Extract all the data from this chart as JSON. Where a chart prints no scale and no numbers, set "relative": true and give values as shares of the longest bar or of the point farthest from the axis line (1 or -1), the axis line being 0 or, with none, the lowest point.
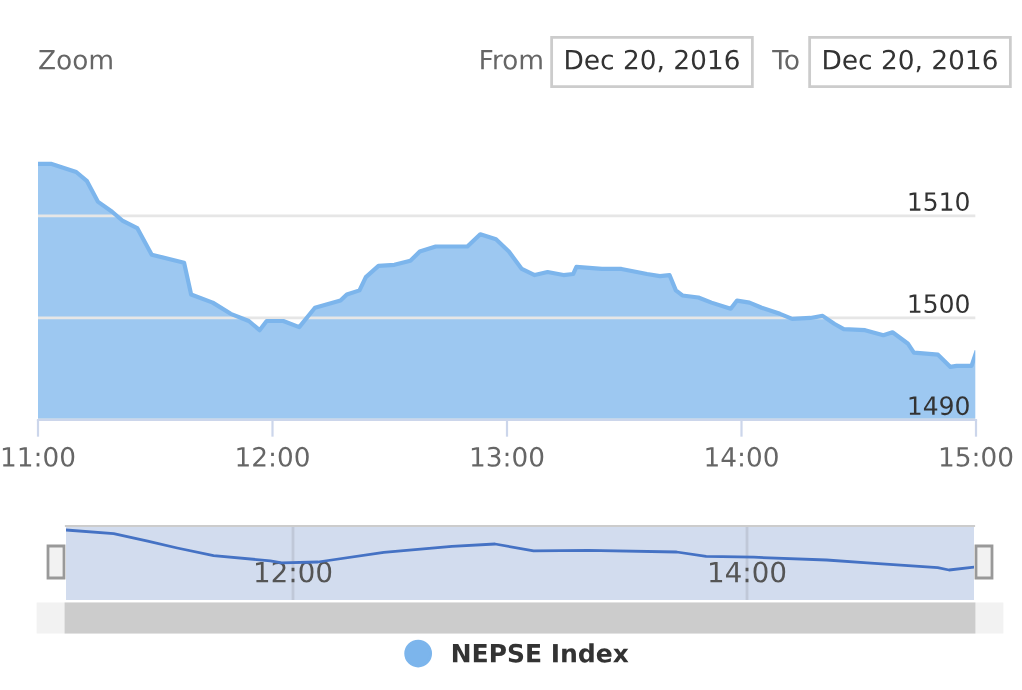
{
  "chart_data": [
    {
      "type": "area",
      "annotations": [
        "Zoom",
        "From",
        "Dec 20, 2016",
        "To",
        "Dec 20, 2016"
      ],
      "x": [
        11.0,
        11.055,
        11.163,
        11.209,
        11.255,
        11.316,
        11.362,
        11.423,
        11.485,
        11.623,
        11.653,
        11.745,
        11.822,
        11.899,
        11.945,
        11.975,
        12.046,
        12.114,
        12.181,
        12.29,
        12.317,
        12.371,
        12.398,
        12.452,
        12.52,
        12.588,
        12.628,
        12.696,
        12.831,
        12.886,
        12.953,
        13.008,
        13.063,
        13.118,
        13.173,
        13.241,
        13.282,
        13.296,
        13.405,
        13.488,
        13.597,
        13.652,
        13.693,
        13.72,
        13.748,
        13.816,
        13.872,
        13.954,
        13.981,
        14.034,
        14.086,
        14.164,
        14.216,
        14.294,
        14.346,
        14.397,
        14.436,
        14.527,
        14.605,
        14.644,
        14.709,
        14.735,
        14.838,
        14.891,
        14.917,
        14.981,
        15.0
      ],
      "series": [
        {
          "name": "NEPSE Index",
          "color": "#7cb5ec",
          "values": [
            1515.1,
            1515.1,
            1514.3,
            1513.4,
            1511.4,
            1510.4,
            1509.5,
            1508.8,
            1506.2,
            1505.4,
            1502.3,
            1501.5,
            1500.4,
            1499.7,
            1498.8,
            1499.7,
            1499.7,
            1499.1,
            1501.0,
            1501.7,
            1502.3,
            1502.7,
            1504.0,
            1505.1,
            1505.2,
            1505.6,
            1506.5,
            1507.0,
            1507.0,
            1508.2,
            1507.7,
            1506.5,
            1504.8,
            1504.2,
            1504.5,
            1504.2,
            1504.3,
            1505.0,
            1504.8,
            1504.8,
            1504.3,
            1504.1,
            1504.2,
            1502.7,
            1502.2,
            1502.0,
            1501.5,
            1500.9,
            1501.7,
            1501.5,
            1501.0,
            1500.4,
            1499.9,
            1500.0,
            1500.2,
            1499.4,
            1498.9,
            1498.8,
            1498.3,
            1498.6,
            1497.5,
            1496.6,
            1496.4,
            1495.2,
            1495.3,
            1495.3,
            1496.6
          ]
        }
      ],
      "xlim": [
        11,
        15
      ],
      "ylim": [
        1490,
        1519
      ],
      "xticks": [
        {
          "value": 11,
          "label": "11:00"
        },
        {
          "value": 12,
          "label": "12:00"
        },
        {
          "value": 13,
          "label": "13:00"
        },
        {
          "value": 14,
          "label": "14:00"
        },
        {
          "value": 15,
          "label": "15:00"
        }
      ],
      "yticks": [
        1490,
        1500,
        1510
      ],
      "grid": "y",
      "legend": "bottom",
      "marker": "none"
    },
    {
      "type": "line",
      "relative": true,
      "x": [
        11.0,
        11.21,
        11.36,
        11.49,
        11.65,
        11.9,
        11.95,
        12.11,
        12.4,
        12.7,
        12.89,
        13.06,
        13.3,
        13.69,
        13.82,
        14.03,
        14.35,
        14.53,
        14.84,
        14.89,
        15.0
      ],
      "series": [
        {
          "color": "#4572c4",
          "values": [
            1.0,
            0.91,
            0.72,
            0.55,
            0.36,
            0.23,
            0.18,
            0.2,
            0.44,
            0.59,
            0.65,
            0.48,
            0.49,
            0.45,
            0.34,
            0.32,
            0.25,
            0.18,
            0.06,
            0.0,
            0.07
          ]
        }
      ],
      "xlim": [
        11,
        15
      ],
      "xticks": [
        {
          "value": 12,
          "label": "12:00"
        },
        {
          "value": 14,
          "label": "14:00"
        }
      ],
      "grid": "x",
      "tick_labels": "x"
    }
  ]
}
